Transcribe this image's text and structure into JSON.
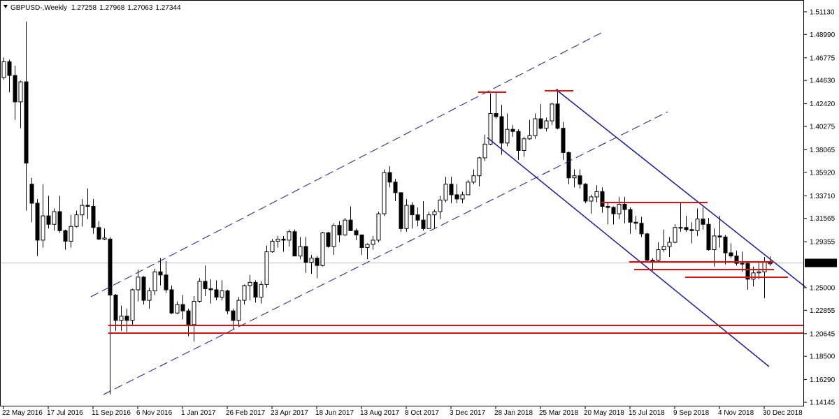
{
  "chart_data": {
    "type": "candlestick",
    "title": "GBPUSD-,Weekly",
    "categories": [
      "22 May 2016",
      null,
      null,
      null,
      null,
      null,
      null,
      null,
      "17 Jul 2016",
      null,
      null,
      null,
      null,
      null,
      null,
      null,
      "11 Sep 2016",
      null,
      null,
      null,
      null,
      null,
      null,
      null,
      "6 Nov 2016",
      null,
      null,
      null,
      null,
      null,
      null,
      null,
      "1 Jan 2017",
      null,
      null,
      null,
      null,
      null,
      null,
      null,
      "26 Feb 2017",
      null,
      null,
      null,
      null,
      null,
      null,
      null,
      "23 Apr 2017",
      null,
      null,
      null,
      null,
      null,
      null,
      null,
      "18 Jun 2017",
      null,
      null,
      null,
      null,
      null,
      null,
      null,
      "13 Aug 2017",
      null,
      null,
      null,
      null,
      null,
      null,
      null,
      "8 Oct 2017",
      null,
      null,
      null,
      null,
      null,
      null,
      null,
      "3 Dec 2017",
      null,
      null,
      null,
      null,
      null,
      null,
      null,
      "28 Jan 2018",
      null,
      null,
      null,
      null,
      null,
      null,
      null,
      "25 Mar 2018",
      null,
      null,
      null,
      null,
      null,
      null,
      null,
      "20 May 2018",
      null,
      null,
      null,
      null,
      null,
      null,
      null,
      "15 Jul 2018",
      null,
      null,
      null,
      null,
      null,
      null,
      null,
      "9 Sep 2018",
      null,
      null,
      null,
      null,
      null,
      null,
      null,
      "4 Nov 2018",
      null,
      null,
      null,
      null,
      null,
      null,
      null,
      "30 Dec 2018",
      null
    ],
    "open": [
      1.449,
      1.464,
      1.451,
      1.426,
      1.445,
      1.348,
      1.33,
      1.295,
      1.318,
      1.31,
      1.322,
      1.304,
      1.294,
      1.308,
      1.319,
      1.328,
      1.327,
      1.307,
      1.296,
      1.296,
      1.243,
      1.219,
      1.223,
      1.219,
      1.248,
      1.26,
      1.238,
      1.247,
      1.265,
      1.262,
      1.248,
      1.226,
      1.234,
      1.228,
      1.215,
      1.237,
      1.256,
      1.249,
      1.248,
      1.241,
      1.247,
      1.228,
      1.219,
      1.238,
      1.252,
      1.255,
      1.241,
      1.253,
      1.284,
      1.294,
      1.296,
      1.295,
      1.303,
      1.28,
      1.289,
      1.274,
      1.278,
      1.271,
      1.302,
      1.289,
      1.309,
      1.3,
      1.314,
      1.304,
      1.3,
      1.288,
      1.291,
      1.295,
      1.32,
      1.359,
      1.35,
      1.34,
      1.306,
      1.328,
      1.319,
      1.314,
      1.306,
      1.319,
      1.322,
      1.333,
      1.348,
      1.338,
      1.334,
      1.338,
      1.35,
      1.356,
      1.373,
      1.386,
      1.415,
      1.412,
      1.387,
      1.4,
      1.398,
      1.38,
      1.391,
      1.394,
      1.41,
      1.401,
      1.408,
      1.424,
      1.401,
      1.378,
      1.354,
      1.356,
      1.348,
      1.332,
      1.336,
      1.341,
      1.327,
      1.326,
      1.32,
      1.329,
      1.324,
      1.312,
      1.311,
      1.301,
      1.276,
      1.276,
      1.286,
      1.289,
      1.293,
      1.307,
      1.307,
      1.305,
      1.304,
      1.315,
      1.31,
      1.286,
      1.299,
      1.298,
      1.283,
      1.28,
      1.273,
      1.273,
      1.258,
      1.264,
      1.265,
      1.27258
    ],
    "high": [
      1.468,
      1.466,
      1.46,
      1.446,
      1.502,
      1.354,
      1.334,
      1.348,
      1.337,
      1.325,
      1.337,
      1.305,
      1.319,
      1.323,
      1.334,
      1.344,
      1.334,
      1.313,
      1.306,
      1.298,
      1.244,
      1.233,
      1.23,
      1.249,
      1.267,
      1.261,
      1.25,
      1.268,
      1.278,
      1.275,
      1.252,
      1.237,
      1.243,
      1.23,
      1.242,
      1.259,
      1.271,
      1.258,
      1.257,
      1.257,
      1.248,
      1.23,
      1.241,
      1.253,
      1.262,
      1.257,
      1.256,
      1.29,
      1.296,
      1.299,
      1.299,
      1.305,
      1.305,
      1.298,
      1.298,
      1.281,
      1.28,
      1.303,
      1.303,
      1.311,
      1.313,
      1.316,
      1.327,
      1.306,
      1.3,
      1.292,
      1.299,
      1.322,
      1.362,
      1.365,
      1.353,
      1.34,
      1.334,
      1.331,
      1.326,
      1.332,
      1.322,
      1.324,
      1.337,
      1.355,
      1.355,
      1.348,
      1.341,
      1.352,
      1.362,
      1.374,
      1.395,
      1.434,
      1.435,
      1.423,
      1.415,
      1.404,
      1.4,
      1.393,
      1.409,
      1.415,
      1.424,
      1.411,
      1.425,
      1.438,
      1.407,
      1.379,
      1.362,
      1.362,
      1.349,
      1.338,
      1.347,
      1.345,
      1.331,
      1.327,
      1.336,
      1.336,
      1.326,
      1.318,
      1.317,
      1.302,
      1.278,
      1.293,
      1.305,
      1.298,
      1.31,
      1.33,
      1.318,
      1.312,
      1.325,
      1.326,
      1.316,
      1.306,
      1.318,
      1.3,
      1.292,
      1.285,
      1.284,
      1.275,
      1.27,
      1.274,
      1.279,
      1.27968
    ],
    "low": [
      1.447,
      1.435,
      1.409,
      1.401,
      1.323,
      1.312,
      1.28,
      1.288,
      1.306,
      1.304,
      1.302,
      1.286,
      1.288,
      1.307,
      1.308,
      1.315,
      1.301,
      1.295,
      1.295,
      1.149,
      1.209,
      1.209,
      1.208,
      1.215,
      1.237,
      1.234,
      1.23,
      1.243,
      1.252,
      1.245,
      1.225,
      1.225,
      1.22,
      1.204,
      1.199,
      1.236,
      1.242,
      1.235,
      1.238,
      1.238,
      1.225,
      1.211,
      1.214,
      1.234,
      1.238,
      1.236,
      1.235,
      1.25,
      1.283,
      1.288,
      1.284,
      1.289,
      1.28,
      1.277,
      1.264,
      1.263,
      1.259,
      1.27,
      1.288,
      1.281,
      1.293,
      1.299,
      1.304,
      1.295,
      1.281,
      1.277,
      1.286,
      1.293,
      1.318,
      1.345,
      1.332,
      1.303,
      1.303,
      1.306,
      1.308,
      1.304,
      1.306,
      1.306,
      1.315,
      1.331,
      1.33,
      1.33,
      1.33,
      1.338,
      1.348,
      1.346,
      1.37,
      1.385,
      1.41,
      1.376,
      1.384,
      1.393,
      1.371,
      1.374,
      1.39,
      1.391,
      1.4,
      1.398,
      1.404,
      1.4,
      1.371,
      1.348,
      1.345,
      1.344,
      1.33,
      1.32,
      1.331,
      1.321,
      1.31,
      1.31,
      1.315,
      1.311,
      1.301,
      1.305,
      1.298,
      1.275,
      1.266,
      1.275,
      1.284,
      1.279,
      1.292,
      1.303,
      1.303,
      1.292,
      1.299,
      1.305,
      1.285,
      1.27,
      1.288,
      1.272,
      1.278,
      1.271,
      1.265,
      1.248,
      1.251,
      1.258,
      1.24,
      1.27063
    ],
    "close": [
      1.464,
      1.451,
      1.426,
      1.445,
      1.368,
      1.33,
      1.295,
      1.318,
      1.31,
      1.322,
      1.304,
      1.294,
      1.308,
      1.319,
      1.328,
      1.327,
      1.307,
      1.296,
      1.297,
      1.243,
      1.219,
      1.223,
      1.219,
      1.248,
      1.26,
      1.238,
      1.247,
      1.265,
      1.262,
      1.248,
      1.226,
      1.234,
      1.228,
      1.215,
      1.237,
      1.256,
      1.249,
      1.248,
      1.241,
      1.247,
      1.228,
      1.219,
      1.238,
      1.252,
      1.255,
      1.241,
      1.253,
      1.284,
      1.294,
      1.296,
      1.295,
      1.303,
      1.28,
      1.289,
      1.274,
      1.278,
      1.271,
      1.302,
      1.289,
      1.309,
      1.3,
      1.314,
      1.304,
      1.3,
      1.288,
      1.291,
      1.295,
      1.32,
      1.359,
      1.35,
      1.34,
      1.306,
      1.328,
      1.319,
      1.314,
      1.306,
      1.319,
      1.322,
      1.333,
      1.348,
      1.338,
      1.334,
      1.338,
      1.35,
      1.356,
      1.373,
      1.386,
      1.415,
      1.412,
      1.387,
      1.4,
      1.398,
      1.38,
      1.391,
      1.394,
      1.41,
      1.401,
      1.408,
      1.424,
      1.401,
      1.378,
      1.354,
      1.356,
      1.348,
      1.332,
      1.336,
      1.341,
      1.327,
      1.326,
      1.32,
      1.329,
      1.324,
      1.312,
      1.311,
      1.301,
      1.276,
      1.276,
      1.286,
      1.289,
      1.293,
      1.307,
      1.307,
      1.305,
      1.304,
      1.315,
      1.31,
      1.286,
      1.299,
      1.298,
      1.283,
      1.28,
      1.273,
      1.273,
      1.258,
      1.264,
      1.265,
      1.274,
      1.27344
    ],
    "ylim": [
      1.1375,
      1.5225
    ],
    "yticks": [
      {
        "value": 1.5113,
        "label": "1.51130"
      },
      {
        "value": 1.4899,
        "label": "1.48990"
      },
      1.46775,
      {
        "value": 1.4463,
        "label": "1.44630"
      },
      {
        "value": 1.4242,
        "label": "1.42420"
      },
      1.40275,
      1.38065,
      {
        "value": 1.3592,
        "label": "1.35920"
      },
      {
        "value": 1.3371,
        "label": "1.33710"
      },
      1.31565,
      1.29355,
      {
        "value": 1.25,
        "label": "1.25000"
      },
      1.22855,
      1.20645,
      {
        "value": 1.185,
        "label": "1.18500"
      },
      {
        "value": 1.1629,
        "label": "1.16290"
      },
      1.14145
    ],
    "colors": {
      "up": "#ffffff",
      "down": "#000000",
      "outline": "#000000"
    }
  }
}
